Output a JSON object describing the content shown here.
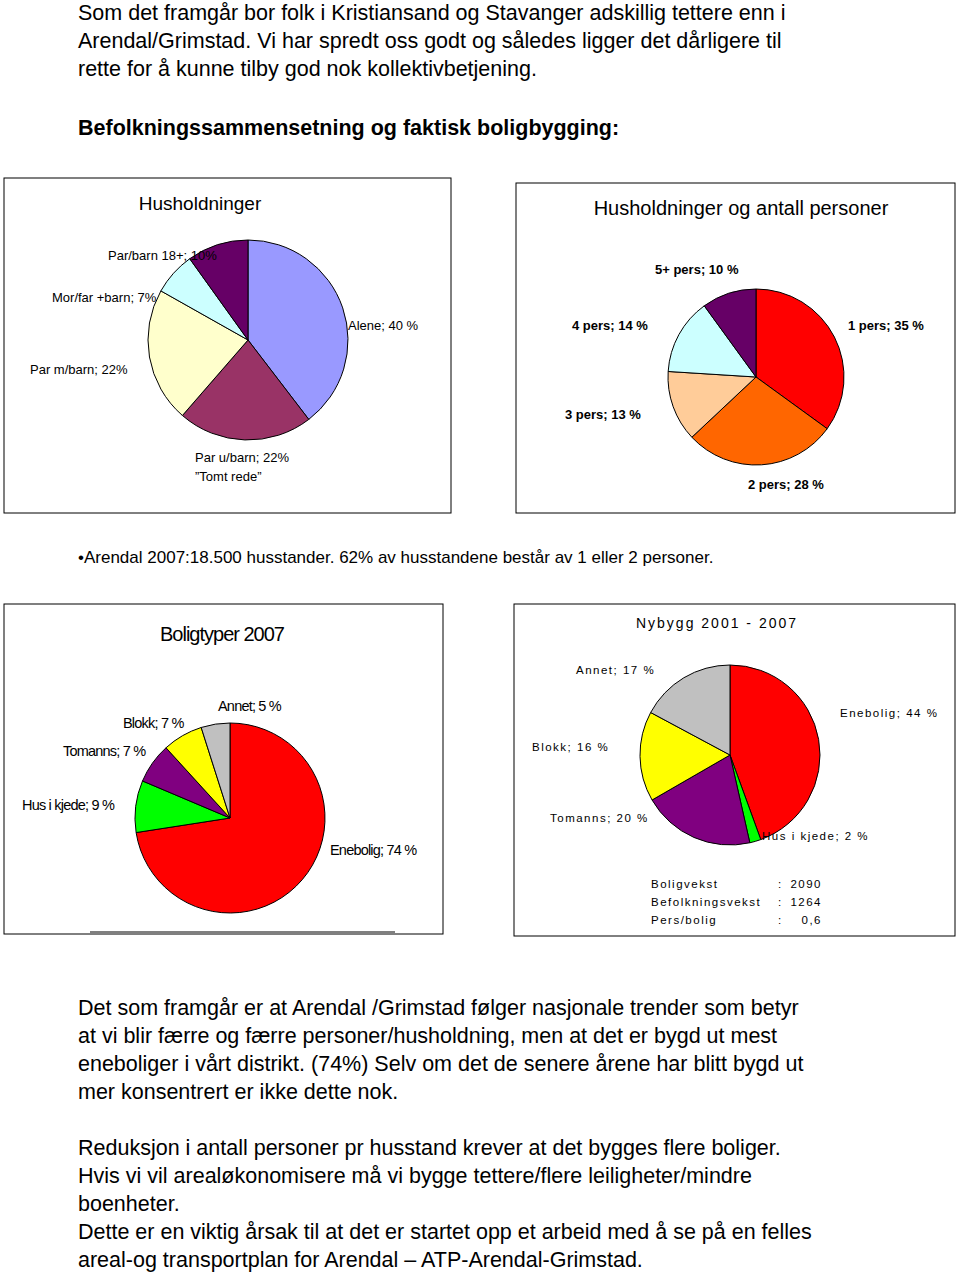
{
  "document": {
    "intro": [
      "Som det framgår bor folk i Kristiansand og Stavanger adskillig tettere enn i",
      "Arendal/Grimstad. Vi har spredt oss godt og således ligger det dårligere til",
      "rette for å kunne tilby god nok kollektivbetjening."
    ],
    "heading": "Befolkningssammensetning og faktisk boligbygging:",
    "bullet": "•Arendal 2007:18.500 husstander. 62% av husstandene består av 1 eller 2 personer.",
    "stats": {
      "separator": ":",
      "rows": [
        {
          "label": "Boligvekst",
          "value": "2090"
        },
        {
          "label": "Befolkningsvekst",
          "value": "1264"
        },
        {
          "label": "Pers/bolig",
          "value": "0,6"
        }
      ]
    },
    "paragraphs": [
      [
        "Det som framgår er at Arendal /Grimstad følger nasjonale trender som betyr",
        "at vi blir færre og færre personer/husholdning, men at det er bygd ut mest",
        "eneboliger i vårt distrikt. (74%) Selv om det de senere årene har blitt bygd ut",
        "mer konsentrert er ikke dette nok."
      ],
      [
        "Reduksjon i antall personer pr husstand krever at det bygges flere boliger.",
        "Hvis vi vil arealøkonomisere må vi bygge tettere/flere leiligheter/mindre",
        "boenheter."
      ],
      [
        "Dette er en viktig årsak til at det er startet opp et arbeid med å se på en felles",
        "areal-og transportplan for Arendal – ATP-Arendal-Grimstad."
      ]
    ]
  },
  "chart_data": [
    {
      "type": "pie",
      "title": "Husholdninger",
      "values": [
        40,
        22,
        22,
        7,
        10
      ],
      "value_labels": [
        "Alene; 40 %",
        "Par u/barn; 22%",
        "Par m/barn; 22%",
        "Mor/far +barn; 7%",
        "Par/barn 18+; 10%"
      ],
      "colors": [
        "#9999ff",
        "#993366",
        "#ffffcc",
        "#ccffff",
        "#660066"
      ],
      "data_labels": true,
      "annotations": [
        "”Tomt rede”"
      ]
    },
    {
      "type": "pie",
      "title": "Husholdninger og antall personer",
      "values": [
        35,
        28,
        13,
        14,
        10
      ],
      "value_labels": [
        "1 pers; 35 %",
        "2 pers; 28 %",
        "3 pers; 13 %",
        "4 pers; 14 %",
        "5+ pers; 10 %"
      ],
      "colors": [
        "#ff0000",
        "#ff6600",
        "#ffcc99",
        "#ccffff",
        "#660066"
      ],
      "data_labels": true
    },
    {
      "type": "pie",
      "title": "Boligtyper 2007",
      "values": [
        74,
        9,
        7,
        7,
        5
      ],
      "value_labels": [
        "Enebolig; 74 %",
        "Hus i kjede; 9 %",
        "Tomanns; 7 %",
        "Blokk; 7 %",
        "Annet; 5 %"
      ],
      "colors": [
        "#ff0000",
        "#00ff00",
        "#800080",
        "#ffff00",
        "#c0c0c0"
      ],
      "data_labels": true
    },
    {
      "type": "pie",
      "title": "Nybygg 2001 - 2007",
      "values": [
        44,
        2,
        20,
        16,
        17
      ],
      "value_labels": [
        "Enebolig; 44 %",
        "Hus i kjede; 2 %",
        "Tomanns; 20 %",
        "Blokk; 16 %",
        "Annet; 17 %"
      ],
      "colors": [
        "#ff0000",
        "#00ff00",
        "#800080",
        "#ffff00",
        "#c0c0c0"
      ],
      "data_labels": true
    }
  ]
}
